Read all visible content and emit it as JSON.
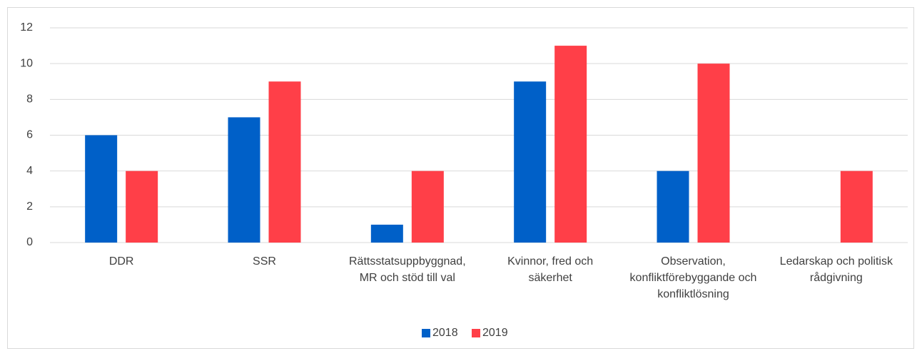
{
  "chart_data": {
    "type": "bar",
    "categories": [
      "DDR",
      "SSR",
      "Rättsstatsuppbyggnad, MR och stöd till val",
      "Kvinnor, fred och säkerhet",
      "Observation, konfliktförebyggande och konfliktlösning",
      "Ledarskap och politisk rådgivning"
    ],
    "series": [
      {
        "name": "2018",
        "color": "#0060c8",
        "values": [
          6,
          7,
          1,
          9,
          4,
          0
        ]
      },
      {
        "name": "2019",
        "color": "#ff3f48",
        "values": [
          4,
          9,
          4,
          11,
          10,
          4
        ]
      }
    ],
    "ylim": [
      0,
      12
    ],
    "yticks": [
      0,
      2,
      4,
      6,
      8,
      10,
      12
    ],
    "grid": true,
    "legend": "bottom"
  }
}
